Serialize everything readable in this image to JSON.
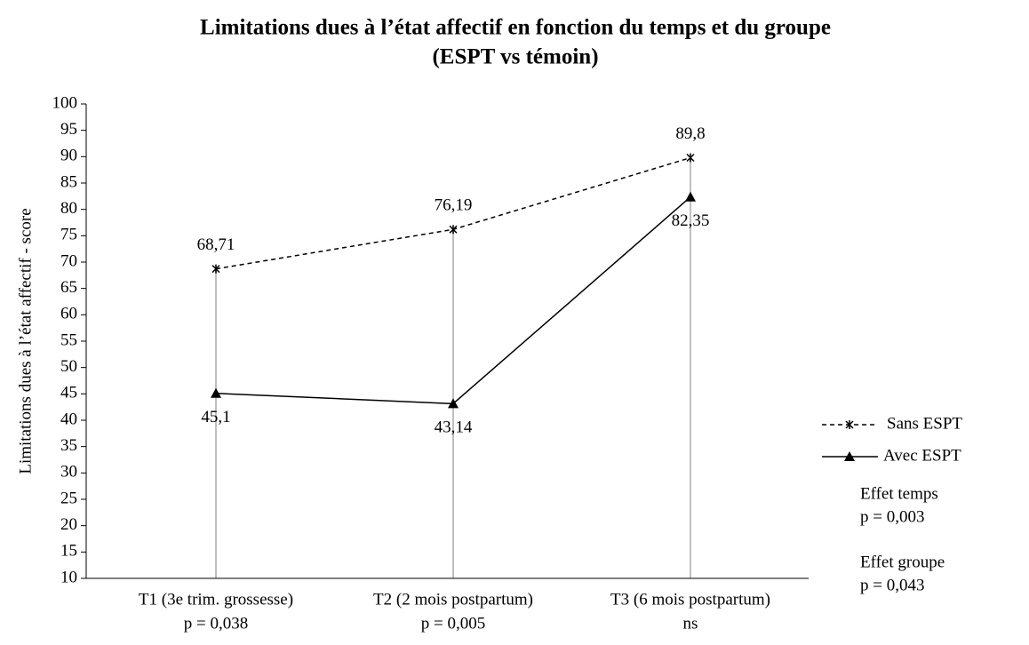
{
  "chart_data": {
    "type": "line",
    "title": [
      "Limitations dues à l’état affectif en fonction du temps et du groupe",
      "(ESPT vs témoin)"
    ],
    "y_label": "Limitations dues à l’état affectif - score",
    "categories": [
      "T1 (3e trim. grossesse)",
      "T2 (2 mois postpartum)",
      "T3 (6 mois postpartum)"
    ],
    "category_notes": [
      "p = 0,038",
      "p = 0,005",
      "ns"
    ],
    "series": [
      {
        "name": "Sans ESPT",
        "color": "#000000",
        "dash": true,
        "marker": "star",
        "label_side": "above",
        "values": [
          68.71,
          76.19,
          89.8
        ],
        "value_labels": [
          "68,71",
          "76,19",
          "89,8"
        ]
      },
      {
        "name": "Avec ESPT",
        "color": "#000000",
        "dash": false,
        "marker": "triangle",
        "label_side": "below",
        "values": [
          45.1,
          43.14,
          82.35
        ],
        "value_labels": [
          "45,1",
          "43,14",
          "82,35"
        ]
      }
    ],
    "ylim": [
      10,
      100
    ],
    "yticks": [
      10,
      15,
      20,
      25,
      30,
      35,
      40,
      45,
      50,
      55,
      60,
      65,
      70,
      75,
      80,
      85,
      90,
      95,
      100
    ],
    "drop_lines": true,
    "legend": "right",
    "annotations": [
      {
        "title": "Effet temps",
        "text": "p = 0,003"
      },
      {
        "title": "Effet groupe",
        "text": "p = 0,043"
      }
    ]
  }
}
